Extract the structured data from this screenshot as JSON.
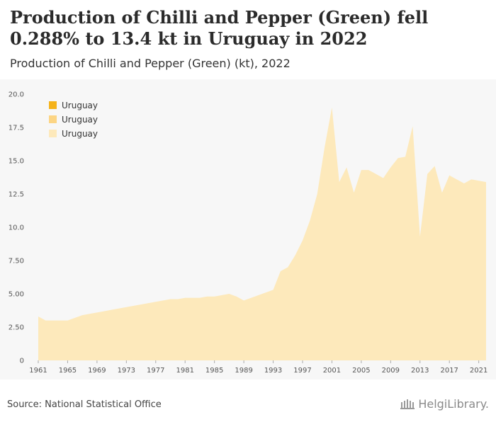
{
  "header": {
    "title": "Production of Chilli and Pepper (Green) fell 0.288% to 13.4 kt in Uruguay in 2022",
    "subtitle": "Production of Chilli and Pepper (Green) (kt), 2022"
  },
  "footer": {
    "source": "Source: National Statistical Office",
    "logo_text": "HelgiLibrary."
  },
  "chart_data": {
    "type": "area",
    "title": "Production of Chilli and Pepper (Green) fell 0.288% to 13.4 kt in Uruguay in 2022",
    "subtitle": "Production of Chilli and Pepper (Green) (kt), 2022",
    "xlabel": "",
    "ylabel": "",
    "ylim": [
      0,
      20
    ],
    "xlim": [
      1961,
      2022
    ],
    "y_ticks": [
      "0",
      "2.50",
      "5.00",
      "7.50",
      "10.0",
      "12.5",
      "15.0",
      "17.5",
      "20.0"
    ],
    "y_tick_values": [
      0,
      2.5,
      5,
      7.5,
      10,
      12.5,
      15,
      17.5,
      20
    ],
    "x_ticks": [
      "1961",
      "1965",
      "1969",
      "1973",
      "1977",
      "1981",
      "1985",
      "1989",
      "1993",
      "1997",
      "2001",
      "2005",
      "2009",
      "2013",
      "2017",
      "2021"
    ],
    "x_tick_values": [
      1961,
      1965,
      1969,
      1973,
      1977,
      1981,
      1985,
      1989,
      1993,
      1997,
      2001,
      2005,
      2009,
      2013,
      2017,
      2021
    ],
    "grid": false,
    "legend_position": "top-left",
    "legend": [
      {
        "label": "Uruguay",
        "color": "#f5b31b"
      },
      {
        "label": "Uruguay",
        "color": "#fcd584"
      },
      {
        "label": "Uruguay",
        "color": "#fde9bb"
      }
    ],
    "series": [
      {
        "name": "Uruguay",
        "color": "#fde9bb",
        "x": [
          1961,
          1962,
          1963,
          1964,
          1965,
          1966,
          1967,
          1968,
          1969,
          1970,
          1971,
          1972,
          1973,
          1974,
          1975,
          1976,
          1977,
          1978,
          1979,
          1980,
          1981,
          1982,
          1983,
          1984,
          1985,
          1986,
          1987,
          1988,
          1989,
          1990,
          1991,
          1992,
          1993,
          1994,
          1995,
          1996,
          1997,
          1998,
          1999,
          2000,
          2001,
          2002,
          2003,
          2004,
          2005,
          2006,
          2007,
          2008,
          2009,
          2010,
          2011,
          2012,
          2013,
          2014,
          2015,
          2016,
          2017,
          2018,
          2019,
          2020,
          2021,
          2022
        ],
        "values": [
          3.3,
          3.0,
          3.0,
          3.0,
          3.0,
          3.2,
          3.4,
          3.5,
          3.6,
          3.7,
          3.8,
          3.9,
          4.0,
          4.1,
          4.2,
          4.3,
          4.4,
          4.5,
          4.6,
          4.6,
          4.7,
          4.7,
          4.7,
          4.8,
          4.8,
          4.9,
          5.0,
          4.8,
          4.5,
          4.7,
          4.9,
          5.1,
          5.3,
          6.7,
          7.0,
          7.9,
          9.0,
          10.5,
          12.5,
          16.0,
          19.0,
          13.4,
          14.5,
          12.6,
          14.3,
          14.3,
          14.0,
          13.7,
          14.5,
          15.2,
          15.3,
          17.6,
          9.3,
          14.0,
          14.6,
          12.6,
          13.9,
          13.6,
          13.3,
          13.6,
          13.5,
          13.4
        ]
      }
    ]
  }
}
